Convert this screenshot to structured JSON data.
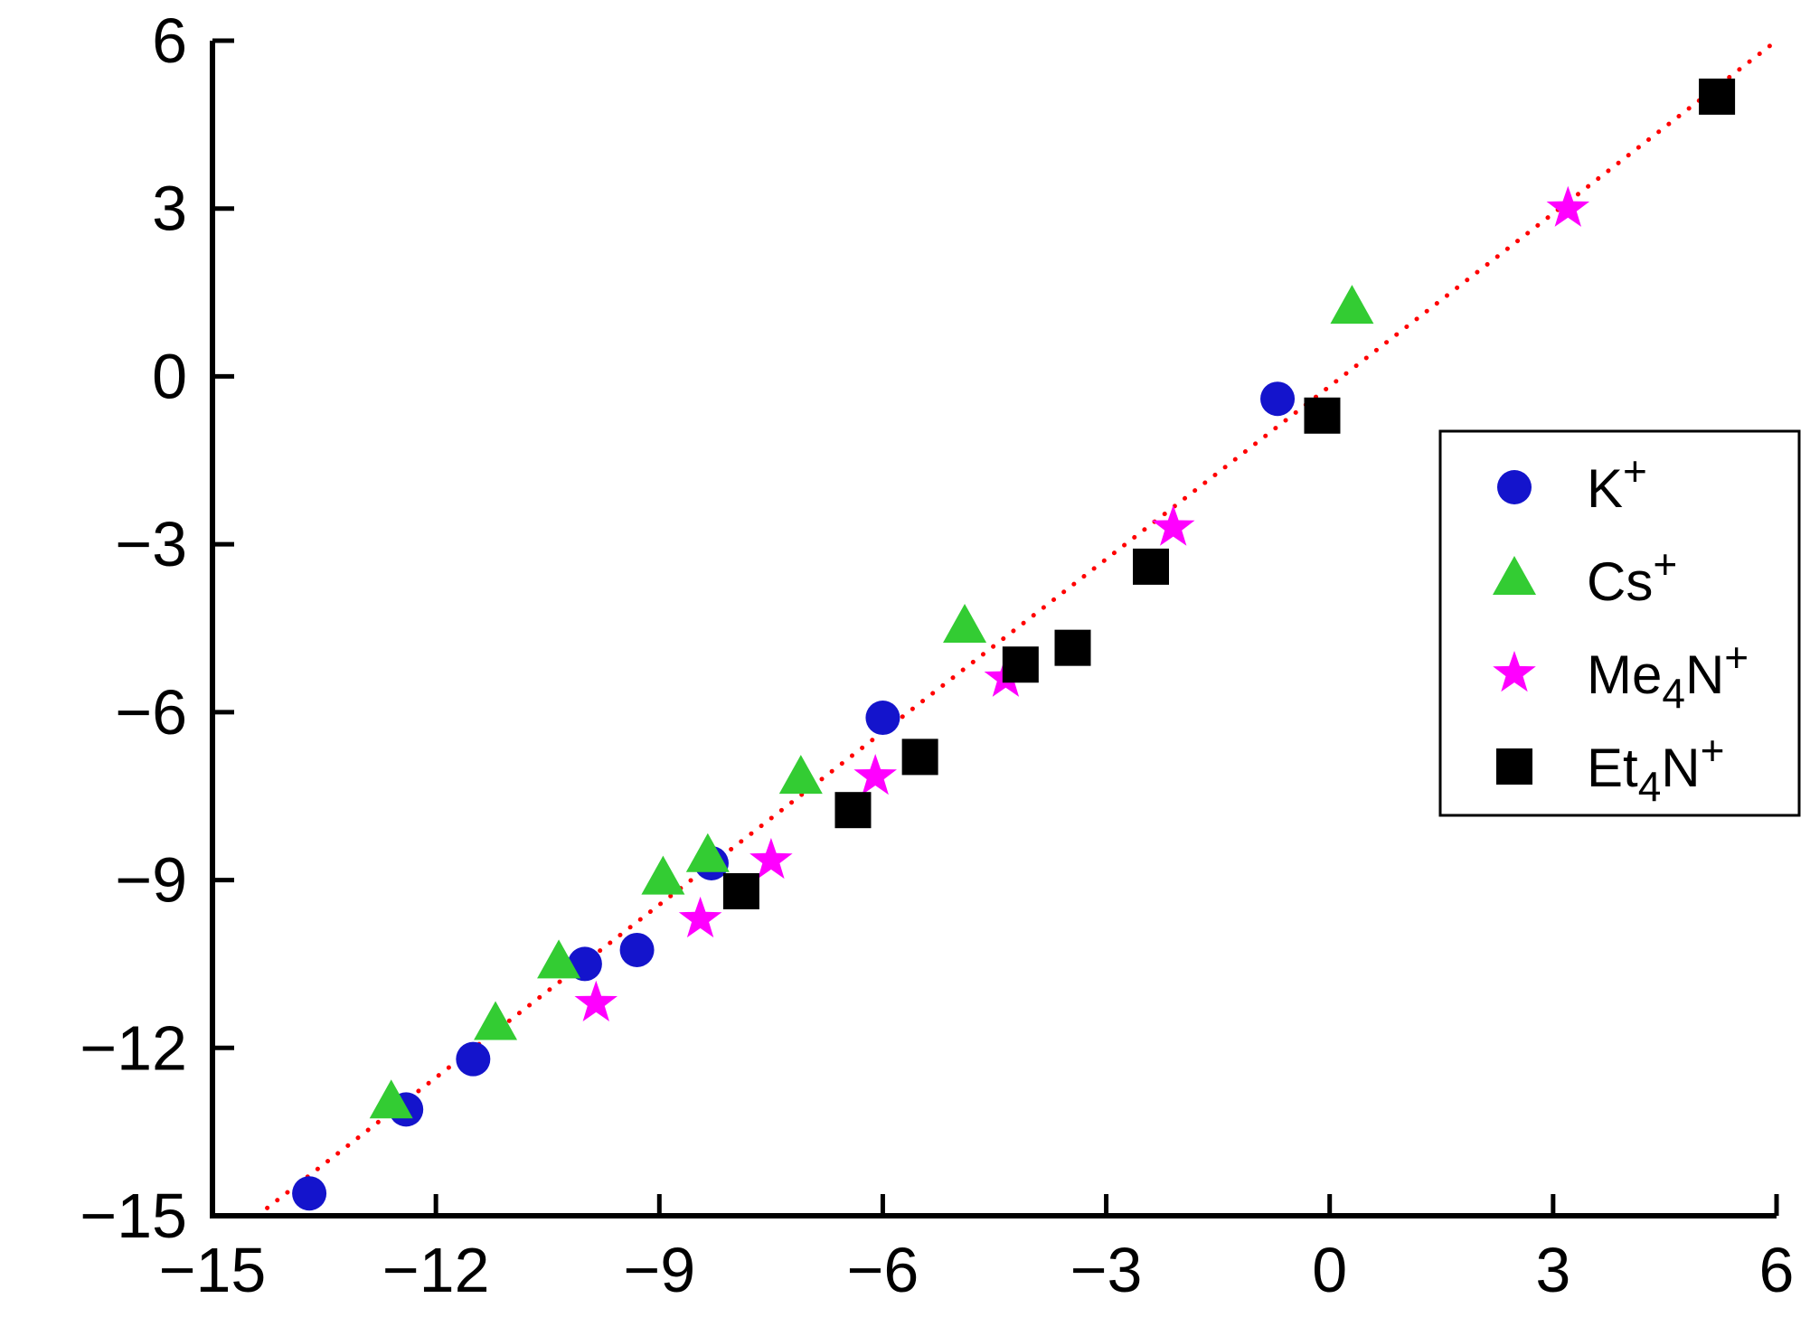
{
  "figure": {
    "background": "#ffffff"
  },
  "chart_data": {
    "type": "scatter",
    "title": "",
    "xlabel": "",
    "ylabel": "",
    "xlim": [
      -15,
      6
    ],
    "ylim": [
      -15,
      6
    ],
    "grid": false,
    "axis_color": "#000000",
    "x_ticks": {
      "values": [
        -15,
        -12,
        -9,
        -6,
        -3,
        0,
        3,
        6
      ],
      "labels": [
        "−15",
        "−12",
        "−9",
        "−6",
        "−3",
        "0",
        "3",
        "6"
      ]
    },
    "y_ticks": {
      "values": [
        -15,
        -12,
        -9,
        -6,
        -3,
        0,
        3,
        6
      ],
      "labels": [
        "−15",
        "−12",
        "−9",
        "−6",
        "−3",
        "0",
        "3",
        "6"
      ]
    },
    "trend_line": {
      "style": "dotted",
      "color": "#ff0000",
      "x1": -14.4,
      "y1": -15.0,
      "x2": 6.0,
      "y2": 6.0
    },
    "legend": {
      "position": "right-middle",
      "border_color": "#000000",
      "background": "#ffffff"
    },
    "series": [
      {
        "id": "k-plus",
        "label_text": "K+",
        "label_parts": [
          [
            "K",
            "n"
          ],
          [
            "+",
            "sup"
          ]
        ],
        "marker": "circle",
        "color": "#1414cc",
        "points": [
          [
            -13.7,
            -14.6
          ],
          [
            -12.4,
            -13.1
          ],
          [
            -11.5,
            -12.2
          ],
          [
            -10.0,
            -10.5
          ],
          [
            -9.3,
            -10.25
          ],
          [
            -8.3,
            -8.7
          ],
          [
            -6.0,
            -6.1
          ],
          [
            -0.7,
            -0.4
          ]
        ]
      },
      {
        "id": "cs-plus",
        "label_text": "Cs+",
        "label_parts": [
          [
            "Cs",
            "n"
          ],
          [
            "+",
            "sup"
          ]
        ],
        "marker": "triangle",
        "color": "#33cc33",
        "points": [
          [
            -12.6,
            -13.0
          ],
          [
            -11.2,
            -11.6
          ],
          [
            -10.35,
            -10.5
          ],
          [
            -8.95,
            -9.0
          ],
          [
            -8.35,
            -8.6
          ],
          [
            -7.1,
            -7.2
          ],
          [
            -4.9,
            -4.5
          ],
          [
            0.3,
            1.2
          ]
        ]
      },
      {
        "id": "me4n-plus",
        "label_text": "Me4N+",
        "label_parts": [
          [
            "Me",
            "n"
          ],
          [
            "4",
            "sub"
          ],
          [
            "N",
            "n"
          ],
          [
            "+",
            "sup"
          ]
        ],
        "marker": "star",
        "color": "#ff00ff",
        "points": [
          [
            -9.85,
            -11.2
          ],
          [
            -8.45,
            -9.7
          ],
          [
            -7.5,
            -8.65
          ],
          [
            -6.1,
            -7.15
          ],
          [
            -4.35,
            -5.4
          ],
          [
            -2.1,
            -2.7
          ],
          [
            3.2,
            3.0
          ]
        ]
      },
      {
        "id": "et4n-plus",
        "label_text": "Et4N+",
        "label_parts": [
          [
            "Et",
            "n"
          ],
          [
            "4",
            "sub"
          ],
          [
            "N",
            "n"
          ],
          [
            "+",
            "sup"
          ]
        ],
        "marker": "square",
        "color": "#000000",
        "points": [
          [
            -7.9,
            -9.2
          ],
          [
            -6.4,
            -7.75
          ],
          [
            -5.5,
            -6.8
          ],
          [
            -4.15,
            -5.15
          ],
          [
            -3.45,
            -4.85
          ],
          [
            -2.4,
            -3.4
          ],
          [
            -0.1,
            -0.7
          ],
          [
            5.2,
            5.0
          ]
        ]
      }
    ]
  }
}
